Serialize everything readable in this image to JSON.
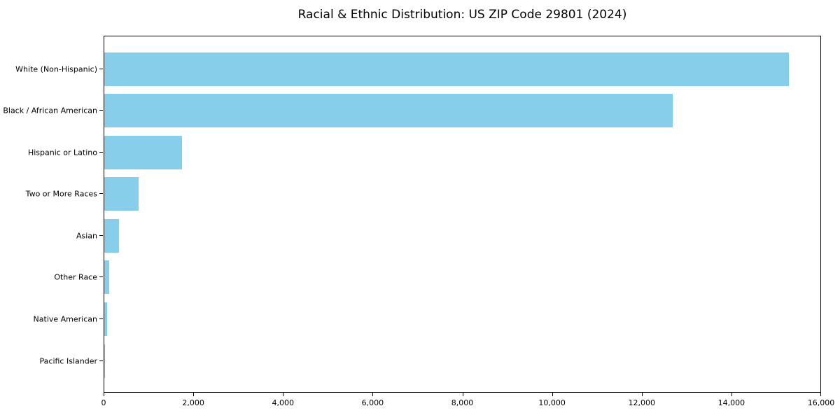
{
  "title": "Racial & Ethnic Distribution: US ZIP Code 29801 (2024)",
  "colors": {
    "bar": "#87CEEB",
    "axis": "#000000",
    "text": "#000000",
    "background": "#FFFFFF"
  },
  "chart_data": {
    "type": "bar",
    "orientation": "horizontal",
    "title": "Racial & Ethnic Distribution: US ZIP Code 29801 (2024)",
    "xlabel": "",
    "ylabel": "",
    "categories": [
      "White (Non-Hispanic)",
      "Black / African American",
      "Hispanic or Latino",
      "Two or More Races",
      "Asian",
      "Other Race",
      "Native American",
      "Pacific Islander"
    ],
    "values": [
      15300,
      12700,
      1740,
      770,
      330,
      115,
      70,
      10
    ],
    "xlim": [
      0,
      16000
    ],
    "x_ticks": [
      0,
      2000,
      4000,
      6000,
      8000,
      10000,
      12000,
      14000,
      16000
    ],
    "x_tick_labels": [
      "0",
      "2,000",
      "4,000",
      "6,000",
      "8,000",
      "10,000",
      "12,000",
      "14,000",
      "16,000"
    ],
    "bar_color": "#87CEEB",
    "grid": false,
    "legend": null,
    "spines": "box"
  }
}
